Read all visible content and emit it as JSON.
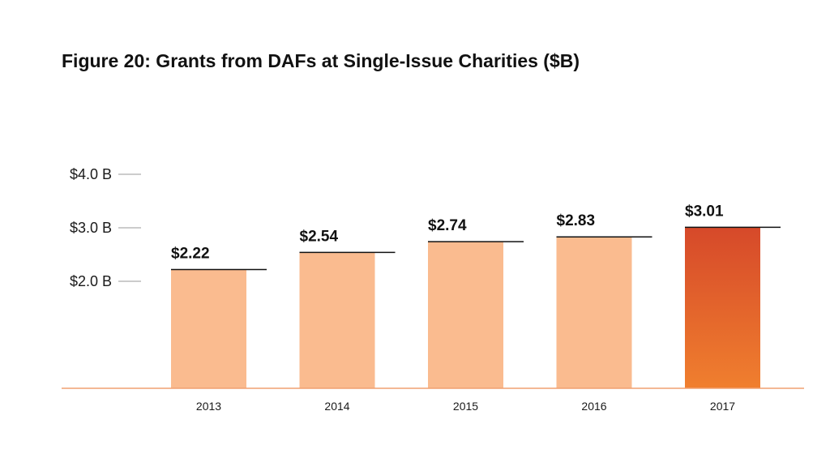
{
  "chart_data": {
    "type": "bar",
    "title": "Figure 20: Grants from DAFs at Single-Issue Charities ($B)",
    "categories": [
      "2013",
      "2014",
      "2015",
      "2016",
      "2017"
    ],
    "values": [
      2.22,
      2.54,
      2.74,
      2.83,
      3.01
    ],
    "value_labels": [
      "$2.22",
      "$2.54",
      "$2.74",
      "$2.83",
      "$3.01"
    ],
    "yticks": [
      {
        "value": 2.0,
        "label": "$2.0 B"
      },
      {
        "value": 3.0,
        "label": "$3.0 B"
      },
      {
        "value": 4.0,
        "label": "$4.0 B"
      }
    ],
    "ylim": [
      0,
      4.0
    ],
    "xlabel": "",
    "ylabel": "",
    "grid": false,
    "legend": "none",
    "colors": {
      "bar": "#FABB8F",
      "highlight_top": "#D6492A",
      "highlight_bottom": "#F07F2E",
      "baseline": "#F0A070",
      "tick": "#BBBBBB",
      "value_line": "#111111"
    },
    "highlight_index": 4
  }
}
